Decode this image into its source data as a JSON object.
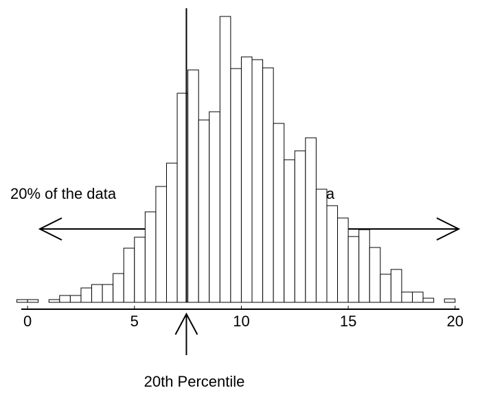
{
  "chart_data": {
    "type": "histogram",
    "bins": [
      -0.5,
      0,
      0.5,
      1,
      1.5,
      2,
      2.5,
      3,
      3.5,
      4,
      4.5,
      5,
      5.5,
      6,
      6.5,
      7,
      7.5,
      8,
      8.5,
      9,
      9.5,
      10,
      10.5,
      11,
      11.5,
      12,
      12.5,
      13,
      13.5,
      14,
      14.5,
      15,
      15.5,
      16,
      16.5,
      17,
      17.5,
      18,
      18.5,
      19,
      19.5,
      20
    ],
    "values": [
      4,
      4,
      0,
      4,
      10,
      10,
      21,
      26,
      26,
      42,
      79,
      95,
      132,
      169,
      203,
      305,
      339,
      266,
      278,
      417,
      341,
      358,
      354,
      342,
      261,
      208,
      221,
      240,
      165,
      141,
      123,
      96,
      106,
      80,
      41,
      48,
      15,
      15,
      6,
      0,
      5
    ],
    "color": "#ffffff",
    "xlim": [
      -1,
      20.2
    ],
    "xticks": [
      0,
      5,
      10,
      15,
      20
    ],
    "ylim": [
      0,
      430
    ],
    "percentile": {
      "value": 7.43,
      "label": "20th Percentile"
    },
    "annotations": [
      "20% of the data",
      "80% of the data"
    ]
  }
}
